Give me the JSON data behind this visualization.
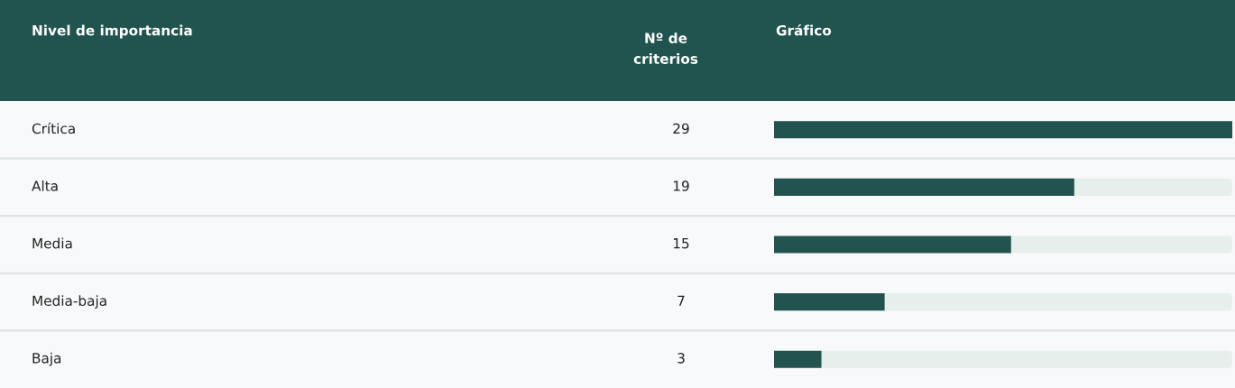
{
  "chart_data": {
    "type": "bar",
    "orientation": "horizontal",
    "categories": [
      "Crítica",
      "Alta",
      "Media",
      "Media-baja",
      "Baja"
    ],
    "values": [
      29,
      19,
      15,
      7,
      3
    ],
    "color": "#22534e",
    "data_labels": true,
    "annotations": [
      "Nivel de importancia",
      "Nº de\ncriterios",
      "Gráfico"
    ],
    "title": null
  }
}
